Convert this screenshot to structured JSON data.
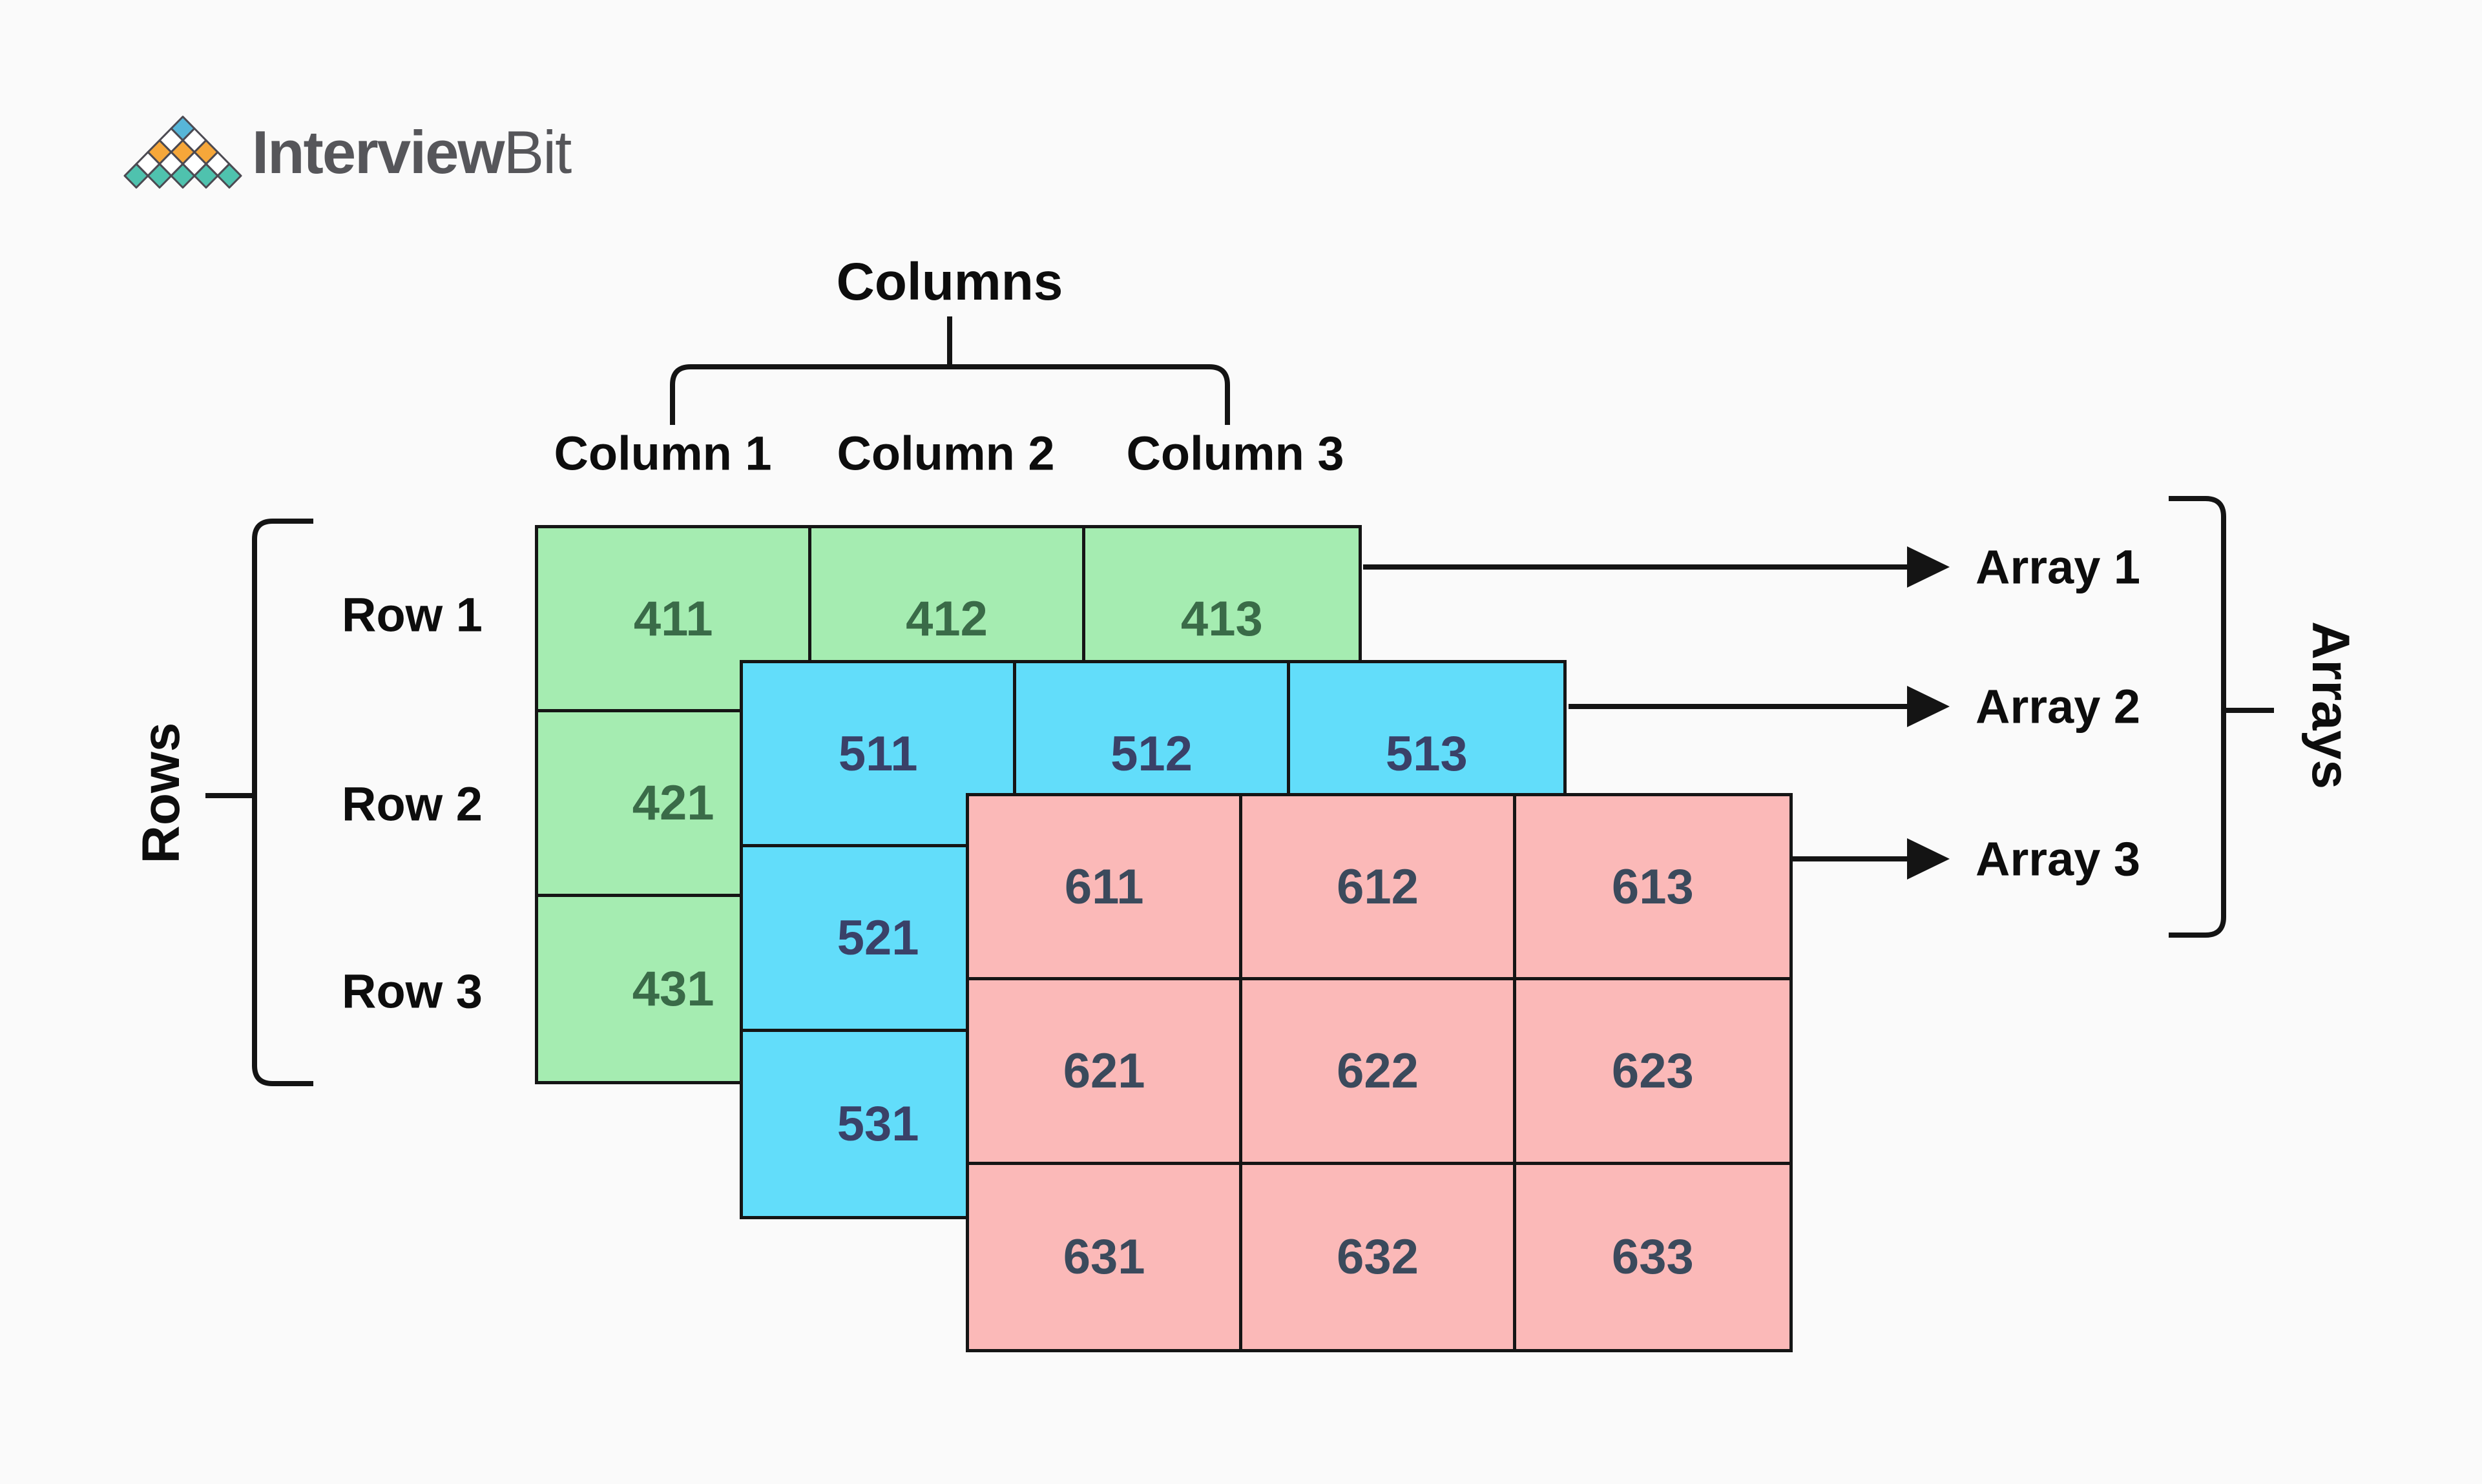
{
  "page": {
    "background": "#FAFAFA",
    "line_color": "#141414"
  },
  "logo": {
    "brand_bold": "Interview",
    "brand_light": "Bit",
    "text_color": "#56565A",
    "pyramid": {
      "outline": "#4C4A52",
      "top_color": "#57B6D8",
      "middle_color": "#F6A73A",
      "bottom_color": "#4FC2AE",
      "empty_color": "#FFFFFF"
    }
  },
  "columns": {
    "title": "Columns",
    "labels": [
      "Column 1",
      "Column 2",
      "Column 3"
    ]
  },
  "rows": {
    "title": "Rows",
    "labels": [
      "Row 1",
      "Row 2",
      "Row 3"
    ]
  },
  "arrays": {
    "title": "Arrays",
    "labels": [
      "Array 1",
      "Array 2",
      "Array 3"
    ]
  },
  "grids": [
    {
      "id": "array-1",
      "fill": "#A5ECB1",
      "border": "#151515",
      "text_color": "#3A6B48",
      "cells": [
        [
          "411",
          "412",
          "413"
        ],
        [
          "421",
          "",
          ""
        ],
        [
          "431",
          "",
          ""
        ]
      ]
    },
    {
      "id": "array-2",
      "fill": "#62DDFA",
      "border": "#151515",
      "text_color": "#3A4168",
      "cells": [
        [
          "511",
          "512",
          "513"
        ],
        [
          "521",
          "",
          ""
        ],
        [
          "531",
          "",
          ""
        ]
      ]
    },
    {
      "id": "array-3",
      "fill": "#FBB9B8",
      "border": "#151515",
      "text_color": "#3B4A5C",
      "cells": [
        [
          "611",
          "612",
          "613"
        ],
        [
          "621",
          "622",
          "623"
        ],
        [
          "631",
          "632",
          "633"
        ]
      ]
    }
  ]
}
